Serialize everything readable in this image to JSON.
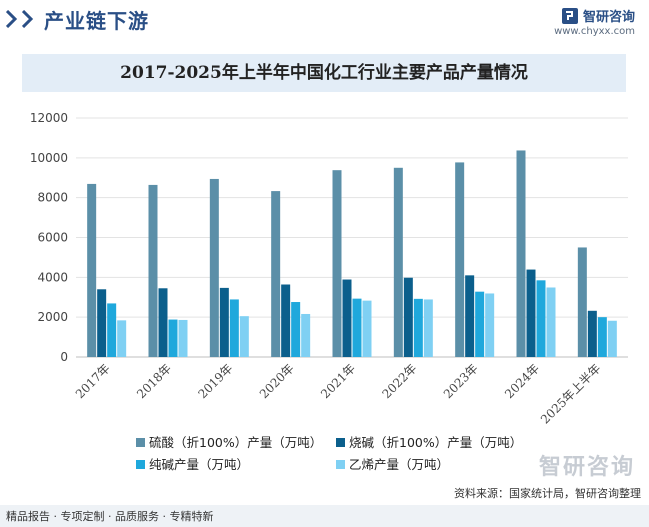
{
  "header": {
    "section_title": "产业链下游",
    "brand_name": "智研咨询",
    "brand_url": "www.chyxx.com"
  },
  "chart_data": {
    "type": "bar",
    "title": "2017-2025年上半年中国化工行业主要产品产量情况",
    "xlabel": "",
    "ylabel": "",
    "ylim": [
      0,
      12000
    ],
    "yticks": [
      "0",
      "2000",
      "4000",
      "6000",
      "8000",
      "10000",
      "12000"
    ],
    "grid": true,
    "legend_position": "bottom",
    "categories": [
      "2017年",
      "2018年",
      "2019年",
      "2020年",
      "2021年",
      "2022年",
      "2023年",
      "2024年",
      "2025年上半年"
    ],
    "series": [
      {
        "name": "硫酸（折100%）产量（万吨）",
        "color": "#5b8fa8",
        "values": [
          8690,
          8640,
          8940,
          8330,
          9380,
          9500,
          9770,
          10370,
          5500
        ]
      },
      {
        "name": "烧碱（折100%）产量（万吨）",
        "color": "#0b5f8c",
        "values": [
          3400,
          3450,
          3470,
          3640,
          3890,
          3980,
          4100,
          4390,
          2320
        ]
      },
      {
        "name": "纯碱产量（万吨）",
        "color": "#1fa8dc",
        "values": [
          2690,
          1880,
          2890,
          2760,
          2930,
          2920,
          3280,
          3850,
          2000
        ]
      },
      {
        "name": "乙烯产量（万吨）",
        "color": "#7fd0f3",
        "values": [
          1840,
          1860,
          2050,
          2160,
          2830,
          2890,
          3190,
          3490,
          1820
        ]
      }
    ]
  },
  "footer": {
    "source": "资料来源：国家统计局，智研咨询整理",
    "tagline": "精品报告 · 专项定制 · 品质服务 · 专精特新",
    "logo_text": "智研咨询"
  }
}
